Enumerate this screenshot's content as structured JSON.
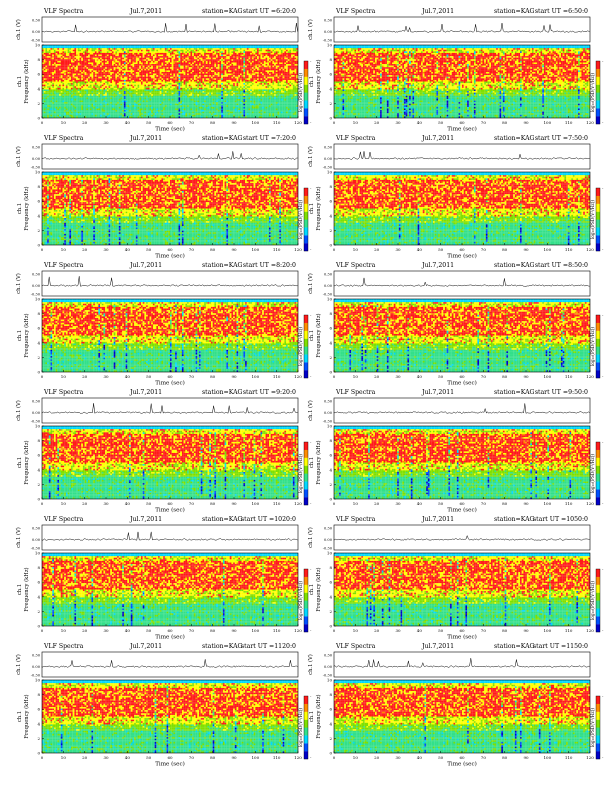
{
  "page": {
    "background": "#ffffff"
  },
  "labels": {
    "ch_label": "ch.1 (V)",
    "freq_label_ch": "ch.1",
    "freq_label": "Frequency (kHz)",
    "time_label": "Time (sec)",
    "colorbar_label": "log₁₀(PSD(V²/Hz))"
  },
  "panels": [
    {
      "title": "VLF Spectra",
      "date": "Jul.7,2011",
      "station": "station=KAG",
      "start": "start UT =6:20:0"
    },
    {
      "title": "VLF Spectra",
      "date": "Jul.7,2011",
      "station": "station=KAG",
      "start": "start UT =6:50:0"
    },
    {
      "title": "VLF Spectra",
      "date": "Jul.7,2011",
      "station": "station=KAG",
      "start": "start UT =7:20:0"
    },
    {
      "title": "VLF Spectra",
      "date": "Jul.7,2011",
      "station": "station=KAG",
      "start": "start UT =7:50:0"
    },
    {
      "title": "VLF Spectra",
      "date": "Jul.7,2011",
      "station": "station=KAG",
      "start": "start UT =8:20:0"
    },
    {
      "title": "VLF Spectra",
      "date": "Jul.7,2011",
      "station": "station=KAG",
      "start": "start UT =8:50:0"
    },
    {
      "title": "VLF Spectra",
      "date": "Jul.7,2011",
      "station": "station=KAG",
      "start": "start UT =9:20:0"
    },
    {
      "title": "VLF Spectra",
      "date": "Jul.7,2011",
      "station": "station=KAG",
      "start": "start UT =9:50:0"
    },
    {
      "title": "VLF Spectra",
      "date": "Jul.7,2011",
      "station": "station=KAG",
      "start": "start UT =1020:0"
    },
    {
      "title": "VLF Spectra",
      "date": "Jul.7,2011",
      "station": "station=KAG",
      "start": "start UT =1050:0"
    },
    {
      "title": "VLF Spectra",
      "date": "Jul.7,2011",
      "station": "station=KAG",
      "start": "start UT =1120:0"
    },
    {
      "title": "VLF Spectra",
      "date": "Jul.7,2011",
      "station": "station=KAG",
      "start": "start UT =1150:0"
    }
  ],
  "chart_data": {
    "type": "heatmap",
    "x_range": [
      0,
      120
    ],
    "x_ticks": [
      0,
      10,
      20,
      30,
      40,
      50,
      60,
      70,
      80,
      90,
      100,
      110,
      120
    ],
    "y_range": [
      0,
      10
    ],
    "y_ticks": [
      0,
      2,
      4,
      6,
      8,
      10
    ],
    "y_tick_labels": [
      "0",
      "2",
      "4",
      "6",
      "8",
      "10"
    ],
    "waveform_ticks": [
      "0.30",
      "0.00",
      "-0.30"
    ],
    "colorbar_ticks": [
      "-",
      "-"
    ],
    "colormap": [
      "#0000c8",
      "#0050ff",
      "#00d8ff",
      "#33e08a",
      "#7fe000",
      "#ffff00",
      "#ff8c00",
      "#ff1a1a"
    ],
    "band_profile_khz": [
      {
        "f": 0.0,
        "level": 3
      },
      {
        "f": 3.0,
        "level": 4
      },
      {
        "f": 4.0,
        "level": 5
      },
      {
        "f": 5.0,
        "level": 6
      },
      {
        "f": 5.6,
        "level": 7
      },
      {
        "f": 9.0,
        "level": 5
      },
      {
        "f": 9.5,
        "level": 2
      },
      {
        "f": 10.0,
        "level": 2
      }
    ]
  }
}
